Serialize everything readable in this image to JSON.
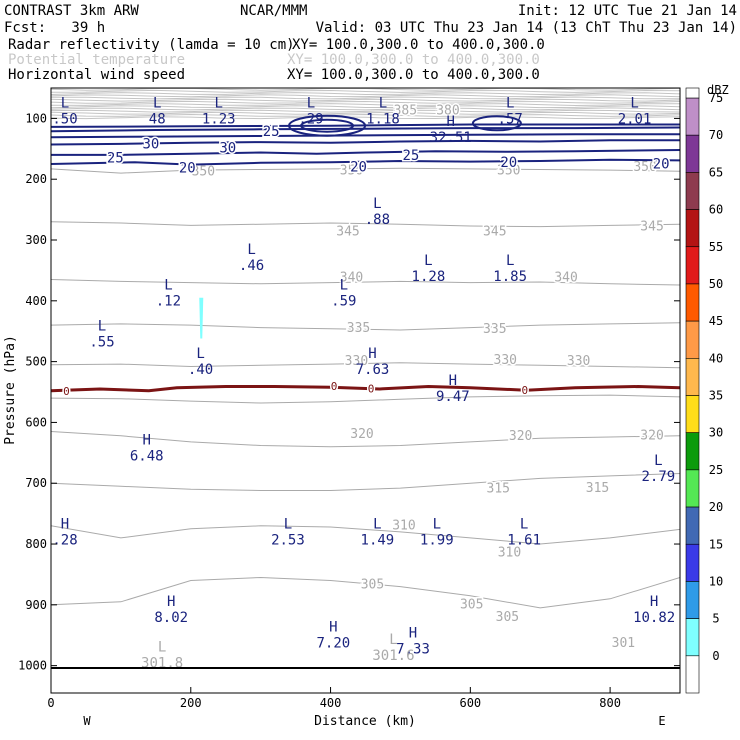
{
  "header": {
    "model": "CONTRAST  3km ARW",
    "org": "NCAR/MMM",
    "init": "Init: 12 UTC Tue 21 Jan 14",
    "fcst": "Fcst:   39 h",
    "valid": "Valid: 03 UTC Thu 23 Jan 14 (13 ChT Thu 23 Jan 14)",
    "field1_name": "Radar reflectivity (lamda = 10 cm)",
    "field1_xy": "XY= 100.0,300.0 to 400.0,300.0",
    "field2_name": "Potential temperature",
    "field2_xy": "XY= 100.0,300.0 to 400.0,300.0",
    "field3_name": "Horizontal wind speed",
    "field3_xy": "XY= 100.0,300.0 to 400.0,300.0"
  },
  "colors": {
    "wind": "#1a237e",
    "theta": "#aaaaaa",
    "melt": "#7b1414",
    "echo": "#7fffff",
    "axis": "#000000"
  },
  "chart_data": {
    "type": "contour-cross-section",
    "xlabel": "Distance (km)",
    "ylabel": "Pressure (hPa)",
    "xlim": [
      0,
      900
    ],
    "ylim": [
      1045,
      50
    ],
    "x_ticks": [
      "0",
      "200",
      "400",
      "600",
      "800"
    ],
    "x_tick_values": [
      0,
      200,
      400,
      600,
      800
    ],
    "y_ticks": [
      "100",
      "200",
      "300",
      "400",
      "500",
      "600",
      "700",
      "800",
      "900",
      "1000"
    ],
    "y_tick_values": [
      100,
      200,
      300,
      400,
      500,
      600,
      700,
      800,
      900,
      1000
    ],
    "left_end": "W",
    "right_end": "E",
    "colorbar": {
      "units": "dBZ",
      "labels": [
        "75",
        "70",
        "65",
        "60",
        "55",
        "50",
        "45",
        "40",
        "35",
        "30",
        "25",
        "20",
        "15",
        "10",
        "5",
        "0"
      ],
      "colors": [
        "#bf8fc8",
        "#7e3896",
        "#8e3b4f",
        "#b31414",
        "#e11b1b",
        "#ff5a00",
        "#ff9a47",
        "#ffb84d",
        "#ffdd1a",
        "#0c9b0c",
        "#54e854",
        "#4169b4",
        "#3a3ae8",
        "#2f9be8",
        "#7fffff",
        "#ffffff"
      ]
    },
    "wind_contours": [
      {
        "level": "20",
        "points": [
          [
            0,
            175
          ],
          [
            120,
            172
          ],
          [
            200,
            176
          ],
          [
            300,
            173
          ],
          [
            400,
            172
          ],
          [
            500,
            170
          ],
          [
            600,
            171
          ],
          [
            700,
            170
          ],
          [
            800,
            168
          ],
          [
            900,
            169
          ]
        ]
      },
      {
        "level": "25",
        "points": [
          [
            0,
            160
          ],
          [
            100,
            160
          ],
          [
            200,
            158
          ],
          [
            300,
            156
          ],
          [
            380,
            158
          ],
          [
            450,
            156
          ],
          [
            550,
            154
          ],
          [
            650,
            155
          ],
          [
            750,
            154
          ],
          [
            900,
            152
          ]
        ]
      },
      {
        "level": "30",
        "points": [
          [
            0,
            143
          ],
          [
            100,
            142
          ],
          [
            200,
            140
          ],
          [
            300,
            139
          ],
          [
            400,
            140
          ],
          [
            500,
            138
          ],
          [
            600,
            137
          ],
          [
            700,
            138
          ],
          [
            800,
            136
          ],
          [
            900,
            136
          ]
        ]
      },
      {
        "level": "",
        "points": [
          [
            0,
            131
          ],
          [
            150,
            130
          ],
          [
            300,
            129
          ],
          [
            450,
            128
          ],
          [
            600,
            127
          ],
          [
            750,
            126
          ],
          [
            900,
            126
          ]
        ]
      },
      {
        "level": "",
        "points": [
          [
            0,
            121
          ],
          [
            150,
            119
          ],
          [
            300,
            118
          ],
          [
            450,
            117
          ],
          [
            600,
            116
          ],
          [
            750,
            116
          ],
          [
            900,
            115
          ]
        ]
      },
      {
        "level": "",
        "points": [
          [
            0,
            114
          ],
          [
            200,
            113
          ],
          [
            400,
            112
          ],
          [
            600,
            110
          ],
          [
            900,
            110
          ]
        ]
      }
    ],
    "wind_contour_labels": [
      {
        "text": "20",
        "x": 195,
        "p": 181
      },
      {
        "text": "20",
        "x": 440,
        "p": 179
      },
      {
        "text": "20",
        "x": 655,
        "p": 172
      },
      {
        "text": "20",
        "x": 873,
        "p": 174
      },
      {
        "text": "25",
        "x": 92,
        "p": 164
      },
      {
        "text": "25",
        "x": 515,
        "p": 160
      },
      {
        "text": "25",
        "x": 315,
        "p": 121
      },
      {
        "text": "30",
        "x": 143,
        "p": 141
      },
      {
        "text": "30",
        "x": 253,
        "p": 148
      }
    ],
    "theta_contours": [
      {
        "level": "350",
        "p": [
          183,
          190,
          185,
          184,
          183,
          182,
          183,
          184,
          185,
          187
        ]
      },
      {
        "level": "345",
        "p": [
          270,
          272,
          276,
          274,
          272,
          274,
          277,
          278,
          276,
          274
        ]
      },
      {
        "level": "340",
        "p": [
          365,
          368,
          370,
          372,
          370,
          368,
          370,
          369,
          372,
          374
        ]
      },
      {
        "level": "335",
        "p": [
          440,
          438,
          440,
          444,
          446,
          448,
          444,
          440,
          438,
          436
        ]
      },
      {
        "level": "330",
        "p": [
          505,
          504,
          508,
          506,
          504,
          502,
          504,
          506,
          508,
          510
        ]
      },
      {
        "level": "325",
        "p": [
          560,
          561,
          565,
          568,
          566,
          562,
          558,
          556,
          555,
          558
        ]
      },
      {
        "level": "320",
        "p": [
          615,
          622,
          632,
          638,
          640,
          638,
          632,
          626,
          624,
          622
        ]
      },
      {
        "level": "315",
        "p": [
          700,
          705,
          710,
          712,
          712,
          708,
          700,
          692,
          688,
          684
        ]
      },
      {
        "level": "310",
        "p": [
          770,
          790,
          775,
          770,
          772,
          780,
          790,
          800,
          790,
          776
        ]
      },
      {
        "level": "305",
        "p": [
          900,
          895,
          860,
          855,
          860,
          870,
          885,
          905,
          890,
          855
        ]
      }
    ],
    "theta_contour_labels": [
      {
        "text": "350",
        "x": 218,
        "p": 186
      },
      {
        "text": "350",
        "x": 430,
        "p": 184
      },
      {
        "text": "350",
        "x": 655,
        "p": 184
      },
      {
        "text": "350",
        "x": 850,
        "p": 178
      },
      {
        "text": "345",
        "x": 425,
        "p": 284
      },
      {
        "text": "345",
        "x": 635,
        "p": 284
      },
      {
        "text": "345",
        "x": 860,
        "p": 276
      },
      {
        "text": "340",
        "x": 430,
        "p": 360
      },
      {
        "text": "340",
        "x": 737,
        "p": 360
      },
      {
        "text": "335",
        "x": 440,
        "p": 443
      },
      {
        "text": "335",
        "x": 635,
        "p": 445
      },
      {
        "text": "330",
        "x": 437,
        "p": 497
      },
      {
        "text": "330",
        "x": 650,
        "p": 496
      },
      {
        "text": "330",
        "x": 755,
        "p": 497
      },
      {
        "text": "320",
        "x": 445,
        "p": 617
      },
      {
        "text": "320",
        "x": 672,
        "p": 621
      },
      {
        "text": "320",
        "x": 860,
        "p": 620
      },
      {
        "text": "315",
        "x": 640,
        "p": 707
      },
      {
        "text": "315",
        "x": 782,
        "p": 706
      },
      {
        "text": "310",
        "x": 505,
        "p": 768
      },
      {
        "text": "310",
        "x": 656,
        "p": 812
      },
      {
        "text": "305",
        "x": 460,
        "p": 865
      },
      {
        "text": "305",
        "x": 602,
        "p": 898
      },
      {
        "text": "305",
        "x": 653,
        "p": 918
      },
      {
        "text": "301",
        "x": 819,
        "p": 961
      },
      {
        "text": "385",
        "x": 507,
        "p": 85
      },
      {
        "text": "380",
        "x": 568,
        "p": 85
      }
    ],
    "melting_level": [
      [
        0,
        548
      ],
      [
        70,
        545
      ],
      [
        140,
        548
      ],
      [
        180,
        543
      ],
      [
        250,
        541
      ],
      [
        320,
        541
      ],
      [
        400,
        542
      ],
      [
        470,
        545
      ],
      [
        540,
        541
      ],
      [
        600,
        543
      ],
      [
        680,
        547
      ],
      [
        750,
        543
      ],
      [
        840,
        541
      ],
      [
        900,
        543
      ]
    ],
    "melting_labels": [
      {
        "text": "0",
        "x": 22,
        "p": 548
      },
      {
        "text": "0",
        "x": 405,
        "p": 540
      },
      {
        "text": "0",
        "x": 458,
        "p": 544
      },
      {
        "text": "0",
        "x": 678,
        "p": 547
      }
    ],
    "extrema": [
      {
        "type": "L",
        "value": ".50",
        "x": 18,
        "p": 85,
        "color": "wind"
      },
      {
        "type": "L",
        "value": "48",
        "x": 152,
        "p": 85,
        "color": "wind"
      },
      {
        "type": "L",
        "value": "1.23",
        "x": 240,
        "p": 85,
        "color": "wind"
      },
      {
        "type": "L",
        "value": ".29",
        "x": 372,
        "p": 85,
        "color": "wind"
      },
      {
        "type": "L",
        "value": "1.18",
        "x": 475,
        "p": 85,
        "color": "wind"
      },
      {
        "type": "L",
        "value": ".57",
        "x": 657,
        "p": 85,
        "color": "wind"
      },
      {
        "type": "L",
        "value": "2.01",
        "x": 835,
        "p": 85,
        "color": "wind"
      },
      {
        "type": "H",
        "value": "32.51",
        "x": 572,
        "p": 116,
        "color": "wind"
      },
      {
        "type": "L",
        "value": ".88",
        "x": 467,
        "p": 251,
        "color": "wind"
      },
      {
        "type": "L",
        "value": ".46",
        "x": 287,
        "p": 326,
        "color": "wind"
      },
      {
        "type": "L",
        "value": "1.28",
        "x": 540,
        "p": 344,
        "color": "wind"
      },
      {
        "type": "L",
        "value": "1.85",
        "x": 657,
        "p": 344,
        "color": "wind"
      },
      {
        "type": "L",
        "value": ".12",
        "x": 168,
        "p": 385,
        "color": "wind"
      },
      {
        "type": "L",
        "value": ".59",
        "x": 419,
        "p": 385,
        "color": "wind"
      },
      {
        "type": "L",
        "value": ".55",
        "x": 73,
        "p": 452,
        "color": "wind"
      },
      {
        "type": "L",
        "value": ".40",
        "x": 214,
        "p": 497,
        "color": "wind"
      },
      {
        "type": "H",
        "value": "7.63",
        "x": 460,
        "p": 497,
        "color": "wind"
      },
      {
        "type": "H",
        "value": "9.47",
        "x": 575,
        "p": 542,
        "color": "wind"
      },
      {
        "type": "H",
        "value": "6.48",
        "x": 137,
        "p": 640,
        "color": "wind"
      },
      {
        "type": "L",
        "value": "2.79",
        "x": 869,
        "p": 673,
        "color": "wind"
      },
      {
        "type": "H",
        "value": ".28",
        "x": 18,
        "p": 778,
        "color": "wind"
      },
      {
        "type": "L",
        "value": "2.53",
        "x": 339,
        "p": 778,
        "color": "wind"
      },
      {
        "type": "L",
        "value": "1.49",
        "x": 467,
        "p": 778,
        "color": "wind"
      },
      {
        "type": "L",
        "value": "1.99",
        "x": 552,
        "p": 778,
        "color": "wind"
      },
      {
        "type": "L",
        "value": "1.61",
        "x": 677,
        "p": 778,
        "color": "wind"
      },
      {
        "type": "H",
        "value": "8.02",
        "x": 172,
        "p": 905,
        "color": "wind"
      },
      {
        "type": "H",
        "value": "10.82",
        "x": 863,
        "p": 905,
        "color": "wind"
      },
      {
        "type": "H",
        "value": "7.20",
        "x": 404,
        "p": 947,
        "color": "wind"
      },
      {
        "type": "H",
        "value": "7.33",
        "x": 518,
        "p": 957,
        "color": "wind"
      },
      {
        "type": "L",
        "value": "301.8",
        "x": 159,
        "p": 980,
        "color": "theta"
      },
      {
        "type": "L",
        "value": "301.6",
        "x": 490,
        "p": 968,
        "color": "theta"
      }
    ],
    "echo": {
      "x": 215,
      "p_top": 395,
      "p_bottom": 462
    }
  }
}
